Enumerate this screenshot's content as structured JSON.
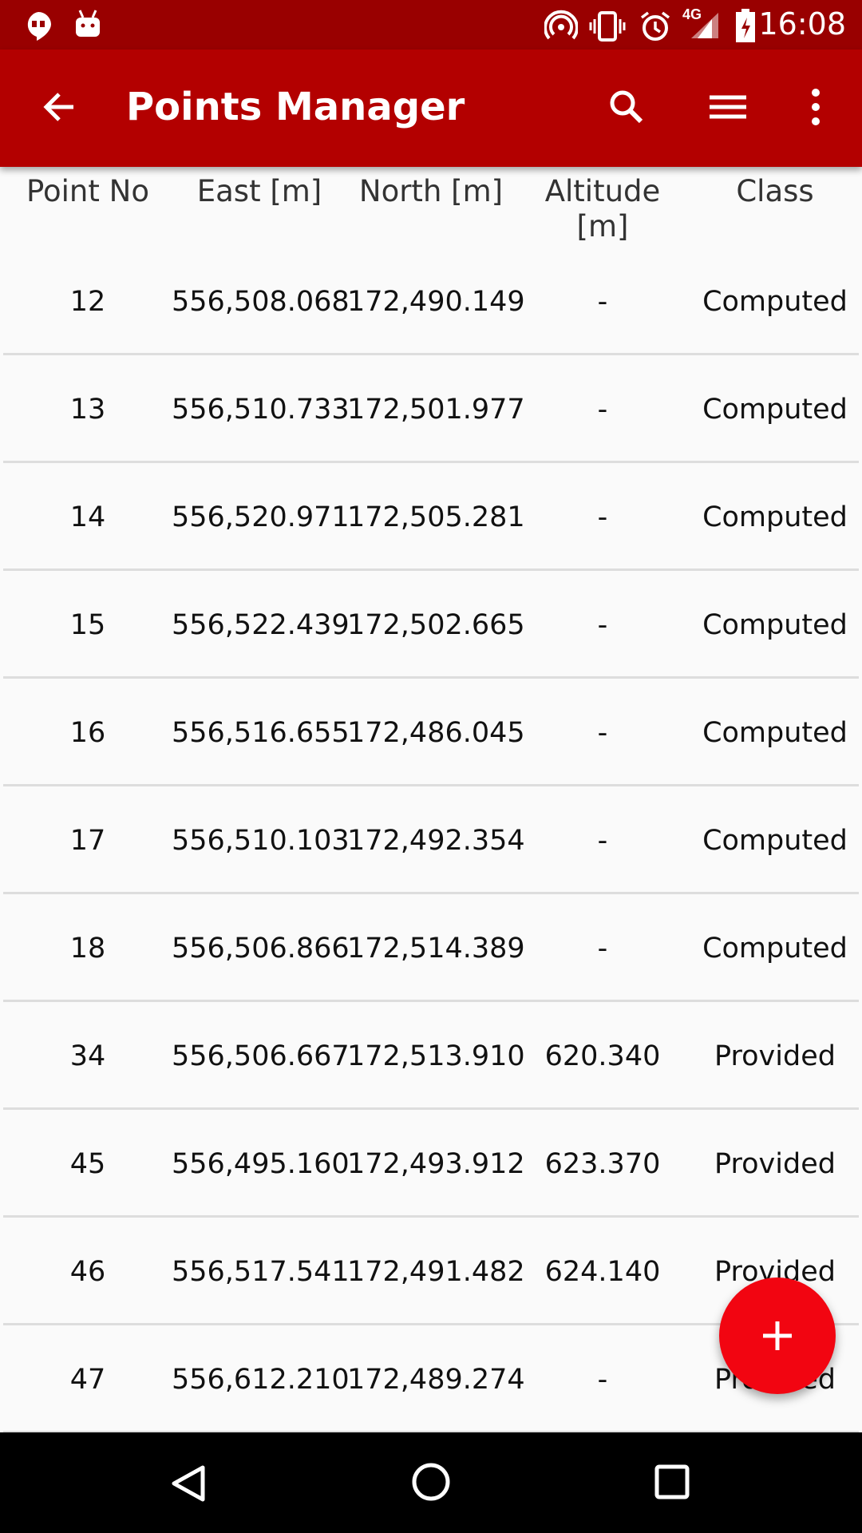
{
  "status_bar": {
    "time": "16:08",
    "network": "4G",
    "icons": [
      "hangouts-icon",
      "android-icon",
      "hotspot-icon",
      "vibrate-icon",
      "alarm-icon",
      "signal-icon",
      "battery-charging-icon"
    ]
  },
  "toolbar": {
    "title": "Points Manager",
    "icons": [
      "back-arrow-icon",
      "search-icon",
      "menu-lines-icon",
      "more-vert-icon"
    ]
  },
  "colors": {
    "status_bar": "#990000",
    "toolbar": "#b30000",
    "fab": "#f20511"
  },
  "table": {
    "headers": [
      "Point No",
      "East [m]",
      "North [m]",
      "Altitude [m]",
      "Class"
    ],
    "rows": [
      [
        "12",
        "556,508.068",
        "172,490.149",
        "-",
        "Computed"
      ],
      [
        "13",
        "556,510.733",
        "172,501.977",
        "-",
        "Computed"
      ],
      [
        "14",
        "556,520.971",
        "172,505.281",
        "-",
        "Computed"
      ],
      [
        "15",
        "556,522.439",
        "172,502.665",
        "-",
        "Computed"
      ],
      [
        "16",
        "556,516.655",
        "172,486.045",
        "-",
        "Computed"
      ],
      [
        "17",
        "556,510.103",
        "172,492.354",
        "-",
        "Computed"
      ],
      [
        "18",
        "556,506.866",
        "172,514.389",
        "-",
        "Computed"
      ],
      [
        "34",
        "556,506.667",
        "172,513.910",
        "620.340",
        "Provided"
      ],
      [
        "45",
        "556,495.160",
        "172,493.912",
        "623.370",
        "Provided"
      ],
      [
        "46",
        "556,517.541",
        "172,491.482",
        "624.140",
        "Provided"
      ],
      [
        "47",
        "556,612.210",
        "172,489.274",
        "-",
        "Provided"
      ]
    ]
  },
  "fab": {
    "icon": "plus-icon"
  },
  "nav_bar": {
    "icons": [
      "back-triangle-icon",
      "home-circle-icon",
      "recents-square-icon"
    ]
  }
}
